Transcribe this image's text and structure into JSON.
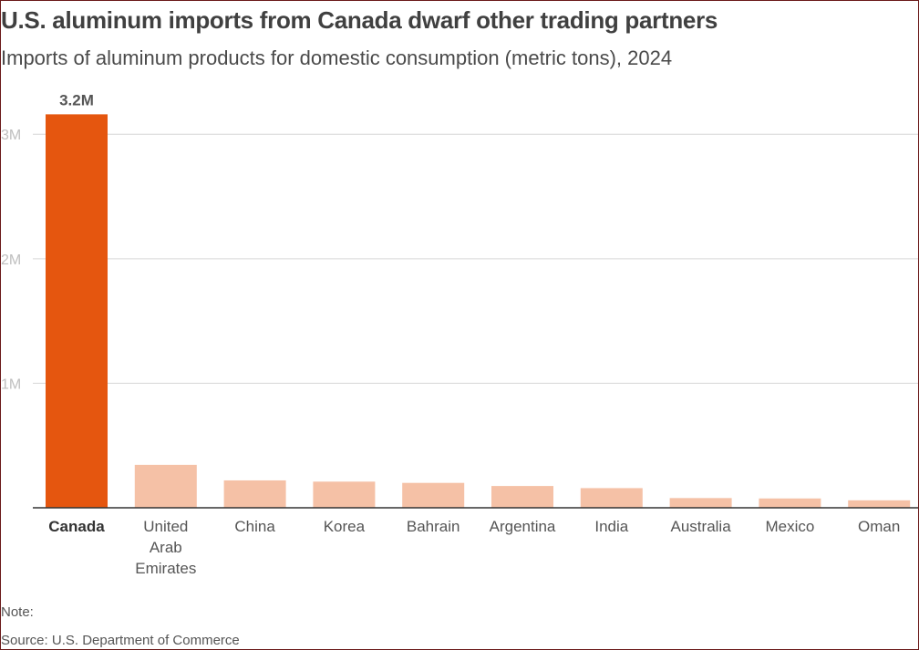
{
  "header": {
    "title": "U.S. aluminum imports from Canada dwarf other trading partners",
    "subtitle": "Imports of aluminum products for domestic consumption (metric tons), 2024"
  },
  "footer": {
    "note": "Note:",
    "source": "Source: U.S. Department of Commerce"
  },
  "colors": {
    "highlight": "#e5560f",
    "bar": "#f5c1a6",
    "grid": "#d6d6d6",
    "axis": "#333333",
    "tick_text": "#bfbfbf"
  },
  "chart_data": {
    "type": "bar",
    "categories": [
      "Canada",
      "United Arab Emirates",
      "China",
      "Korea",
      "Bahrain",
      "Argentina",
      "India",
      "Australia",
      "Mexico",
      "Oman"
    ],
    "category_lines": [
      [
        "Canada"
      ],
      [
        "United",
        "Arab",
        "Emirates"
      ],
      [
        "China"
      ],
      [
        "Korea"
      ],
      [
        "Bahrain"
      ],
      [
        "Argentina"
      ],
      [
        "India"
      ],
      [
        "Australia"
      ],
      [
        "Mexico"
      ],
      [
        "Oman"
      ]
    ],
    "values": [
      3160000,
      345000,
      220000,
      210000,
      200000,
      175000,
      158000,
      78000,
      75000,
      60000
    ],
    "highlight_index": 0,
    "data_labels": [
      {
        "index": 0,
        "text": "3.2M"
      }
    ],
    "yticks": [
      {
        "value": 1000000,
        "label": "1M"
      },
      {
        "value": 2000000,
        "label": "2M"
      },
      {
        "value": 3000000,
        "label": "3M"
      }
    ],
    "ylim": [
      0,
      3280000
    ],
    "xlabel": "",
    "ylabel": "",
    "grid": true,
    "legend": "none"
  }
}
